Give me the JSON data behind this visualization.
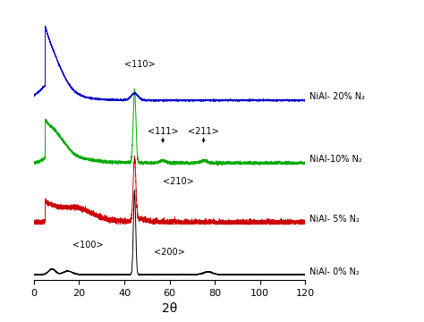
{
  "title": "",
  "xlabel": "2θ",
  "xlim": [
    0,
    120
  ],
  "xticks": [
    0,
    20,
    40,
    60,
    80,
    100,
    120
  ],
  "colors": {
    "black": "#000000",
    "red": "#cc0000",
    "green": "#00aa00",
    "blue": "#0000cc"
  },
  "labels": {
    "nial_0": "NiAl- 0% N₂",
    "nial_5": "NiAl- 5% N₂",
    "nial_10": "NiAl-10% N₂",
    "nial_20": "NiAl- 20% N₂"
  },
  "offsets": [
    0.0,
    0.75,
    1.6,
    2.5
  ],
  "noise_seed": 42,
  "label_fontsize": 7,
  "ann_fontsize": 7
}
